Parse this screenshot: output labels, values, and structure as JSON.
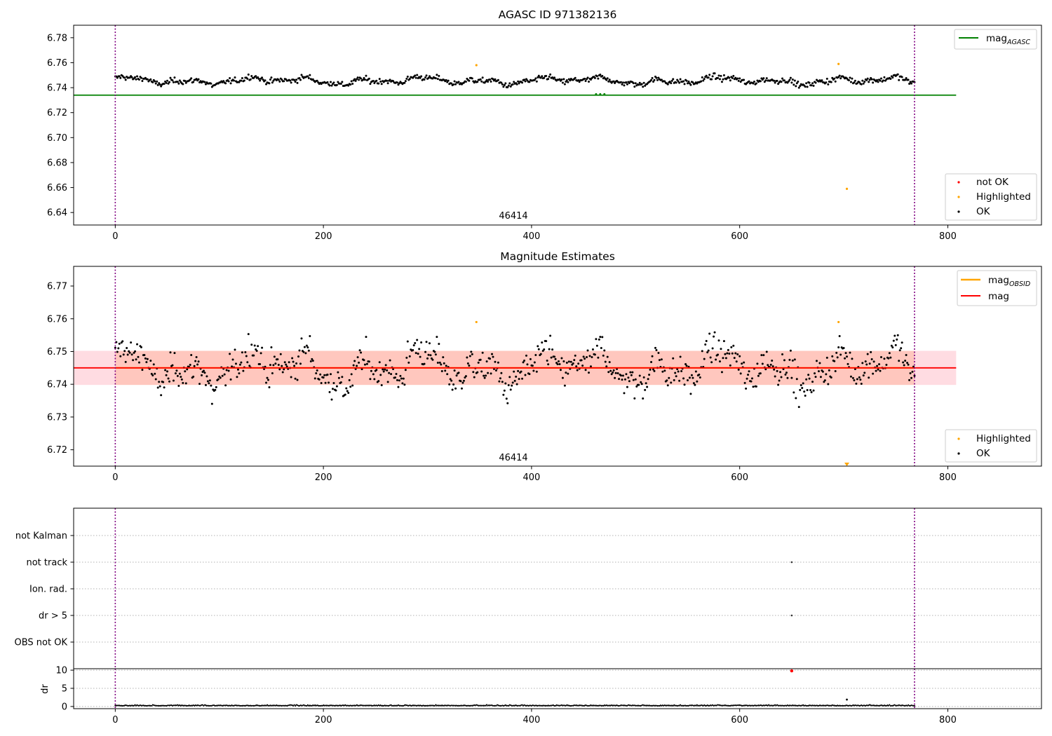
{
  "chart_data": [
    {
      "type": "scatter",
      "title": "AGASC ID 971382136",
      "xlim": [
        -40,
        890
      ],
      "ylim": [
        6.63,
        6.79
      ],
      "xticks": [
        0,
        200,
        400,
        600,
        800
      ],
      "yticks": [
        6.64,
        6.66,
        6.68,
        6.7,
        6.72,
        6.74,
        6.76,
        6.78
      ],
      "vlines": [
        0,
        768
      ],
      "hline": {
        "name": "mag_AGASC",
        "label_main": "mag",
        "label_sub": "AGASC",
        "y": 6.734,
        "x": [
          -40,
          808
        ],
        "color": "#008000"
      },
      "annotation": "46414",
      "series_template": {
        "n": 769,
        "center": 6.7455,
        "amp": 0.0035,
        "noise": 0.0045
      },
      "highlighted": [
        {
          "x": 347,
          "y": 6.758
        },
        {
          "x": 695,
          "y": 6.759
        },
        {
          "x": 703,
          "y": 6.659
        }
      ],
      "legends": [
        {
          "position": "upper-right",
          "entries": [
            {
              "kind": "line",
              "label": "mag",
              "sub": "AGASC",
              "color": "#008000"
            }
          ]
        },
        {
          "position": "lower-right",
          "entries": [
            {
              "kind": "dot",
              "label": "not OK",
              "color": "#ff0000"
            },
            {
              "kind": "dot",
              "label": "Highlighted",
              "color": "#ffa500"
            },
            {
              "kind": "dot",
              "label": "OK",
              "color": "#000000"
            }
          ]
        }
      ]
    },
    {
      "type": "scatter",
      "title": "Magnitude Estimates",
      "xlim": [
        -40,
        890
      ],
      "ylim": [
        6.715,
        6.776
      ],
      "xticks": [
        0,
        200,
        400,
        600,
        800
      ],
      "yticks": [
        6.72,
        6.73,
        6.74,
        6.75,
        6.76,
        6.77
      ],
      "vlines": [
        0,
        768
      ],
      "mag_line": {
        "y": 6.745,
        "x": [
          -40,
          808
        ],
        "color": "#ff0000"
      },
      "band_outer": {
        "y": [
          6.7398,
          6.7502
        ],
        "x": [
          -40,
          808
        ],
        "color": "#ffc0cb"
      },
      "band_inner": {
        "y": [
          6.7398,
          6.7502
        ],
        "x": [
          0,
          768
        ],
        "color": "#ffa07a"
      },
      "annotation": "46414",
      "highlighted": [
        {
          "x": 347,
          "y": 6.759
        },
        {
          "x": 695,
          "y": 6.759
        }
      ],
      "offscale_marker": {
        "x": 703,
        "color": "#ffa500"
      },
      "legends": [
        {
          "position": "upper-right",
          "entries": [
            {
              "kind": "line",
              "label": "mag",
              "sub": "OBSID",
              "color": "#ffa500"
            },
            {
              "kind": "line",
              "label": "mag",
              "sub": "",
              "color": "#ff0000"
            }
          ]
        },
        {
          "position": "lower-right",
          "entries": [
            {
              "kind": "dot",
              "label": "Highlighted",
              "color": "#ffa500"
            },
            {
              "kind": "dot",
              "label": "OK",
              "color": "#000000"
            }
          ]
        }
      ]
    },
    {
      "type": "scatter",
      "title": "",
      "xlim": [
        -40,
        890
      ],
      "categories": [
        "not Kalman",
        "not track",
        "Ion. rad.",
        "dr > 5",
        "OBS not OK"
      ],
      "vlines": [
        0,
        768
      ],
      "points": [
        {
          "x": 650,
          "category": "not track"
        },
        {
          "x": 650,
          "category": "dr > 5"
        }
      ]
    },
    {
      "type": "line",
      "title": "",
      "xlim": [
        -40,
        890
      ],
      "ylim": [
        -0.6,
        10.4
      ],
      "xticks": [
        0,
        200,
        400,
        600,
        800
      ],
      "yticks": [
        0,
        5,
        10
      ],
      "ylabel": "dr",
      "vlines": [
        0,
        768
      ],
      "baseline_level": 0.3,
      "spikes": [
        {
          "x": 703,
          "y": 1.9
        }
      ],
      "bad_points": [
        {
          "x": 650,
          "y": 9.8
        }
      ]
    }
  ]
}
